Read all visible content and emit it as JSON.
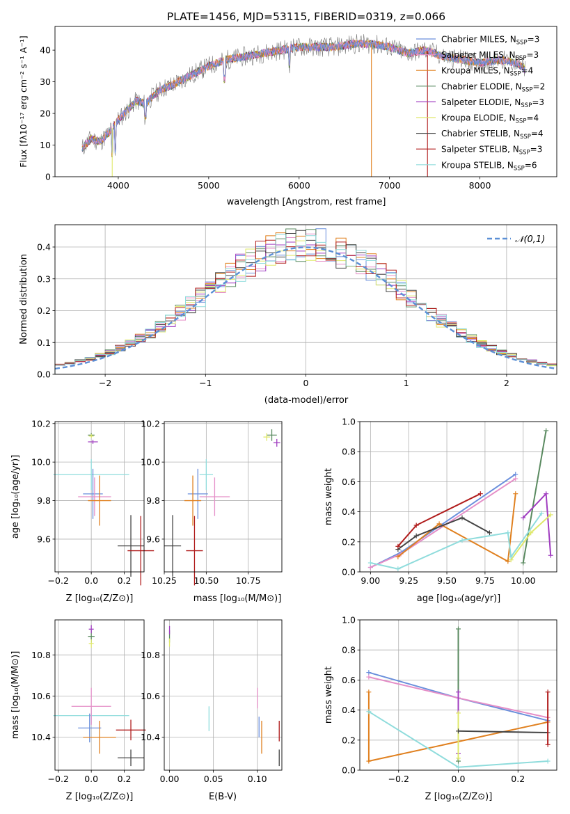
{
  "figure": {
    "title": "PLATE=1456, MJD=53115, FIBERID=0319, z=0.066"
  },
  "colors": {
    "Chabrier MILES": "#6a8fdc",
    "Salpeter MILES": "#e58fc8",
    "Kroupa MILES": "#e0801f",
    "Chabrier ELODIE": "#5a8a60",
    "Salpeter ELODIE": "#a03cc0",
    "Kroupa ELODIE": "#dfe86a",
    "Chabrier STELIB": "#444444",
    "Salpeter STELIB": "#b01c1c",
    "Kroupa STELIB": "#8fdcdc",
    "data_spectrum": "#777777",
    "normal_curve": "#5b8fd6"
  },
  "chart_data": [
    {
      "id": "spectrum",
      "type": "line",
      "xlabel": "wavelength [Angstrom, rest frame]",
      "ylabel": "Flux [f_λ10^-17 erg cm^-2 s^-1 A^-1]",
      "xlim": [
        3300,
        8850
      ],
      "ylim": [
        0,
        47.5
      ],
      "xticks": [
        "4000",
        "5000",
        "6000",
        "7000",
        "8000"
      ],
      "yticks": [
        "0",
        "10",
        "20",
        "30",
        "40"
      ],
      "grid": false,
      "legend_position": "right",
      "legend": [
        "Chabrier MILES, N_SSP=3",
        "Salpeter MILES, N_SSP=3",
        "Kroupa MILES, N_SSP=4",
        "Chabrier ELODIE, N_SSP=2",
        "Salpeter ELODIE, N_SSP=3",
        "Kroupa ELODIE, N_SSP=4",
        "Chabrier STELIB, N_SSP=4",
        "Salpeter STELIB, N_SSP=3",
        "Kroupa STELIB, N_SSP=6"
      ],
      "envelope": {
        "x": [
          3600,
          3700,
          3800,
          3900,
          4000,
          4100,
          4200,
          4300,
          4400,
          4500,
          4600,
          4800,
          5000,
          5200,
          5400,
          5600,
          5800,
          6000,
          6200,
          6400,
          6600,
          6800,
          7000,
          7200,
          7400,
          7600,
          7800,
          8000,
          8200,
          8400,
          8500
        ],
        "y": [
          9,
          12,
          11,
          14,
          18,
          21,
          24,
          23,
          26,
          28,
          29,
          32,
          35,
          37,
          38,
          39,
          40,
          41,
          41,
          41,
          42,
          42,
          41,
          39,
          40,
          38,
          37,
          36,
          37,
          36,
          34
        ]
      },
      "spikes": [
        {
          "x": 3933,
          "to": 0
        },
        {
          "x": 6800,
          "to": 0
        },
        {
          "x": 7420,
          "to": 0
        }
      ]
    },
    {
      "id": "residuals",
      "type": "histogram",
      "xlabel": "(data-model)/error",
      "ylabel": "Normed distribution",
      "xlim": [
        -2.5,
        2.5
      ],
      "ylim": [
        0,
        0.47
      ],
      "xticks": [
        "−2",
        "−1",
        "0",
        "1",
        "2"
      ],
      "yticks": [
        "0.0",
        "0.1",
        "0.2",
        "0.3",
        "0.4"
      ],
      "grid": true,
      "legend_position": "top-right",
      "legend": [
        "N(0,1)"
      ],
      "bins": 50
    },
    {
      "id": "age-vs-Z",
      "type": "errorbar",
      "xlabel": "Z [log10(Z/Z⊙)]",
      "ylabel": "age [log10(age/yr)]",
      "xlim": [
        -0.22,
        0.32
      ],
      "ylim": [
        9.43,
        10.21
      ],
      "xticks": [
        "−0.2",
        "0.0",
        "0.2"
      ],
      "yticks": [
        "9.6",
        "9.8",
        "10.0",
        "10.2"
      ],
      "grid": true,
      "points": [
        {
          "model": "Kroupa STELIB",
          "x": 0.0,
          "xerr": 0.23,
          "y": 9.935,
          "yerr": 0.08
        },
        {
          "model": "Chabrier MILES",
          "x": 0.01,
          "xerr": 0.06,
          "y": 9.835,
          "yerr": 0.13
        },
        {
          "model": "Salpeter MILES",
          "x": 0.02,
          "xerr": 0.1,
          "y": 9.82,
          "yerr": 0.1
        },
        {
          "model": "Kroupa MILES",
          "x": 0.05,
          "xerr": 0.07,
          "y": 9.8,
          "yerr": 0.13
        },
        {
          "model": "Chabrier STELIB",
          "x": 0.24,
          "xerr": 0.08,
          "y": 9.565,
          "yerr": 0.16
        },
        {
          "model": "Salpeter STELIB",
          "x": 0.3,
          "xerr": 0.08,
          "y": 9.54,
          "yerr": 0.18
        },
        {
          "model": "Chabrier ELODIE",
          "x": 0.0,
          "xerr": 0.02,
          "y": 10.14,
          "yerr": 0.01
        },
        {
          "model": "Kroupa ELODIE",
          "x": 0.0,
          "xerr": 0.015,
          "y": 10.135,
          "yerr": 0.01
        },
        {
          "model": "Salpeter ELODIE",
          "x": 0.01,
          "xerr": 0.03,
          "y": 10.105,
          "yerr": 0.01
        }
      ]
    },
    {
      "id": "age-vs-mass",
      "type": "errorbar",
      "xlabel": "mass [log10(M/M⊙)]",
      "yticks": [
        "9.6",
        "9.8",
        "10.0",
        "10.2"
      ],
      "xlim": [
        10.25,
        10.95
      ],
      "ylim": [
        9.43,
        10.21
      ],
      "xticks": [
        "10.25",
        "10.50",
        "10.75"
      ],
      "grid": true,
      "points": [
        {
          "model": "Kroupa STELIB",
          "x": 10.5,
          "xerr": 0.04,
          "y": 9.935,
          "yerr": 0.08
        },
        {
          "model": "Chabrier MILES",
          "x": 10.45,
          "xerr": 0.06,
          "y": 9.835,
          "yerr": 0.13
        },
        {
          "model": "Salpeter MILES",
          "x": 10.55,
          "xerr": 0.09,
          "y": 9.82,
          "yerr": 0.1
        },
        {
          "model": "Kroupa MILES",
          "x": 10.42,
          "xerr": 0.05,
          "y": 9.8,
          "yerr": 0.13
        },
        {
          "model": "Chabrier STELIB",
          "x": 10.3,
          "xerr": 0.05,
          "y": 9.565,
          "yerr": 0.16
        },
        {
          "model": "Salpeter STELIB",
          "x": 10.43,
          "xerr": 0.05,
          "y": 9.54,
          "yerr": 0.18
        },
        {
          "model": "Chabrier ELODIE",
          "x": 10.89,
          "xerr": 0.03,
          "y": 10.14,
          "yerr": 0.03
        },
        {
          "model": "Kroupa ELODIE",
          "x": 10.86,
          "xerr": 0.02,
          "y": 10.13,
          "yerr": 0.02
        },
        {
          "model": "Salpeter ELODIE",
          "x": 10.92,
          "xerr": 0.02,
          "y": 10.1,
          "yerr": 0.02
        }
      ]
    },
    {
      "id": "weight-vs-age",
      "type": "line",
      "xlabel": "age [log10(age/yr)]",
      "ylabel": "mass weight",
      "xlim": [
        8.93,
        10.22
      ],
      "ylim": [
        0,
        1
      ],
      "xticks": [
        "9.00",
        "9.25",
        "9.50",
        "9.75",
        "10.00"
      ],
      "yticks": [
        "0.0",
        "0.2",
        "0.4",
        "0.6",
        "0.8",
        "1.0"
      ],
      "grid": true,
      "series": [
        {
          "model": "Chabrier MILES",
          "x": [
            9.0,
            9.2,
            9.95
          ],
          "y": [
            0.03,
            0.13,
            0.65
          ]
        },
        {
          "model": "Salpeter MILES",
          "x": [
            9.0,
            9.2,
            9.95
          ],
          "y": [
            0.03,
            0.12,
            0.62
          ]
        },
        {
          "model": "Kroupa MILES",
          "x": [
            9.18,
            9.45,
            9.9,
            9.95
          ],
          "y": [
            0.1,
            0.32,
            0.07,
            0.52
          ]
        },
        {
          "model": "Chabrier ELODIE",
          "x": [
            10.0,
            10.15
          ],
          "y": [
            0.06,
            0.94
          ]
        },
        {
          "model": "Salpeter ELODIE",
          "x": [
            10.0,
            10.15,
            10.18
          ],
          "y": [
            0.36,
            0.52,
            0.11
          ]
        },
        {
          "model": "Kroupa ELODIE",
          "x": [
            9.92,
            10.05,
            10.18
          ],
          "y": [
            0.08,
            0.26,
            0.38
          ]
        },
        {
          "model": "Chabrier STELIB",
          "x": [
            9.18,
            9.3,
            9.6,
            9.78
          ],
          "y": [
            0.15,
            0.24,
            0.36,
            0.26
          ]
        },
        {
          "model": "Salpeter STELIB",
          "x": [
            9.18,
            9.3,
            9.72
          ],
          "y": [
            0.17,
            0.31,
            0.52
          ]
        },
        {
          "model": "Kroupa STELIB",
          "x": [
            9.0,
            9.18,
            9.6,
            9.9,
            9.92,
            10.12
          ],
          "y": [
            0.06,
            0.02,
            0.21,
            0.26,
            0.1,
            0.39
          ]
        }
      ]
    },
    {
      "id": "mass-vs-Z",
      "type": "errorbar",
      "xlabel": "Z [log10(Z/Z⊙)]",
      "ylabel": "mass [log10(M/M⊙)]",
      "xlim": [
        -0.22,
        0.32
      ],
      "ylim": [
        10.24,
        10.97
      ],
      "xticks": [
        "−0.2",
        "0.0",
        "0.2"
      ],
      "yticks": [
        "10.4",
        "10.6",
        "10.8"
      ],
      "grid": true,
      "points": [
        {
          "model": "Kroupa STELIB",
          "x": 0.0,
          "xerr": 0.23,
          "y": 10.505,
          "yerr": 0.04
        },
        {
          "model": "Salpeter MILES",
          "x": 0.0,
          "xerr": 0.12,
          "y": 10.55,
          "yerr": 0.09
        },
        {
          "model": "Chabrier MILES",
          "x": -0.01,
          "xerr": 0.07,
          "y": 10.445,
          "yerr": 0.07
        },
        {
          "model": "Kroupa MILES",
          "x": 0.05,
          "xerr": 0.1,
          "y": 10.4,
          "yerr": 0.08
        },
        {
          "model": "Salpeter STELIB",
          "x": 0.24,
          "xerr": 0.09,
          "y": 10.435,
          "yerr": 0.05
        },
        {
          "model": "Chabrier STELIB",
          "x": 0.24,
          "xerr": 0.08,
          "y": 10.3,
          "yerr": 0.04
        },
        {
          "model": "Chabrier ELODIE",
          "x": 0.0,
          "xerr": 0.02,
          "y": 10.89,
          "yerr": 0.03
        },
        {
          "model": "Kroupa ELODIE",
          "x": 0.0,
          "xerr": 0.015,
          "y": 10.855,
          "yerr": 0.02
        },
        {
          "model": "Salpeter ELODIE",
          "x": 0.0,
          "xerr": 0.015,
          "y": 10.925,
          "yerr": 0.02
        }
      ]
    },
    {
      "id": "mass-vs-ebv",
      "type": "errorbar",
      "xlabel": "E(B-V)",
      "xlim": [
        -0.006,
        0.128
      ],
      "ylim": [
        10.24,
        10.97
      ],
      "xticks": [
        "0.00",
        "0.05",
        "0.10"
      ],
      "yticks": [
        "10.4",
        "10.6",
        "10.8"
      ],
      "grid": true,
      "points": [
        {
          "model": "Kroupa STELIB",
          "x": 0.045,
          "xerr": 0.0,
          "y": 10.49,
          "yerr": 0.06
        },
        {
          "model": "Salpeter MILES",
          "x": 0.1,
          "xerr": 0.0,
          "y": 10.59,
          "yerr": 0.05
        },
        {
          "model": "Chabrier MILES",
          "x": 0.102,
          "xerr": 0.0,
          "y": 10.45,
          "yerr": 0.05
        },
        {
          "model": "Kroupa MILES",
          "x": 0.105,
          "xerr": 0.0,
          "y": 10.4,
          "yerr": 0.08
        },
        {
          "model": "Salpeter STELIB",
          "x": 0.125,
          "xerr": 0.0,
          "y": 10.43,
          "yerr": 0.05
        },
        {
          "model": "Chabrier STELIB",
          "x": 0.125,
          "xerr": 0.0,
          "y": 10.3,
          "yerr": 0.04
        },
        {
          "model": "Chabrier ELODIE",
          "x": 0.0,
          "xerr": 0.0,
          "y": 10.89,
          "yerr": 0.03
        },
        {
          "model": "Kroupa ELODIE",
          "x": 0.0,
          "xerr": 0.0,
          "y": 10.86,
          "yerr": 0.02
        },
        {
          "model": "Salpeter ELODIE",
          "x": 0.0,
          "xerr": 0.0,
          "y": 10.92,
          "yerr": 0.02
        }
      ]
    },
    {
      "id": "weight-vs-Z",
      "type": "line",
      "xlabel": "Z [log10(Z/Z⊙)]",
      "ylabel": "mass weight",
      "xlim": [
        -0.33,
        0.33
      ],
      "ylim": [
        0,
        1
      ],
      "xticks": [
        "−0.2",
        "0.0",
        "0.2"
      ],
      "yticks": [
        "0.0",
        "0.2",
        "0.4",
        "0.6",
        "0.8",
        "1.0"
      ],
      "grid": true,
      "series": [
        {
          "model": "Chabrier MILES",
          "x": [
            -0.3,
            0.0,
            0.3
          ],
          "y": [
            0.65,
            0.48,
            0.33
          ]
        },
        {
          "model": "Salpeter MILES",
          "x": [
            -0.3,
            0.0,
            0.3
          ],
          "y": [
            0.62,
            0.48,
            0.35
          ]
        },
        {
          "model": "Kroupa MILES",
          "x": [
            -0.3,
            -0.3,
            0.3
          ],
          "y": [
            0.52,
            0.06,
            0.32
          ]
        },
        {
          "model": "Chabrier ELODIE",
          "x": [
            0.0,
            0.0
          ],
          "y": [
            0.06,
            0.94
          ]
        },
        {
          "model": "Salpeter ELODIE",
          "x": [
            0.0,
            0.0
          ],
          "y": [
            0.11,
            0.52
          ]
        },
        {
          "model": "Kroupa ELODIE",
          "x": [
            0.0,
            0.0
          ],
          "y": [
            0.08,
            0.38
          ]
        },
        {
          "model": "Chabrier STELIB",
          "x": [
            0.0,
            0.3
          ],
          "y": [
            0.26,
            0.25
          ]
        },
        {
          "model": "Salpeter STELIB",
          "x": [
            0.3,
            0.3
          ],
          "y": [
            0.52,
            0.17
          ]
        },
        {
          "model": "Kroupa STELIB",
          "x": [
            -0.3,
            0.0,
            0.3
          ],
          "y": [
            0.39,
            0.02,
            0.06
          ]
        }
      ]
    }
  ]
}
